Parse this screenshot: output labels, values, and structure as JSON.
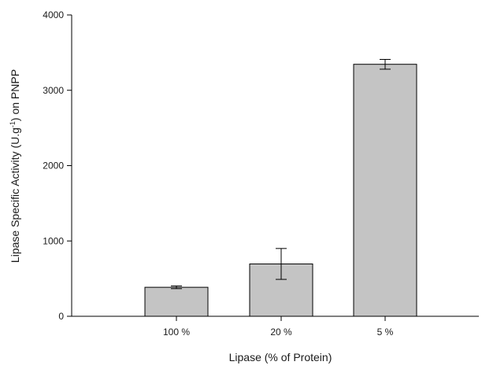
{
  "chart_data": {
    "type": "bar",
    "title": "",
    "xlabel": "Lipase (% of Protein)",
    "ylabel": {
      "prefix": "Lipase Specific Activity (U.g",
      "superscript": "-1",
      "suffix": ") on PNPP"
    },
    "categories": [
      "100 %",
      "20 %",
      "5 %"
    ],
    "values": [
      385,
      695,
      3345
    ],
    "errors": [
      18,
      205,
      65
    ],
    "ylim": [
      0,
      4000
    ],
    "yticks": [
      0,
      1000,
      2000,
      3000,
      4000
    ],
    "yticklabels": [
      "0",
      "1000",
      "2000",
      "3000",
      "4000"
    ],
    "grid": false,
    "legend": false,
    "colors": {
      "bar_fill": "#c4c4c4",
      "bar_stroke": "#000000",
      "axis": "#000000"
    }
  }
}
